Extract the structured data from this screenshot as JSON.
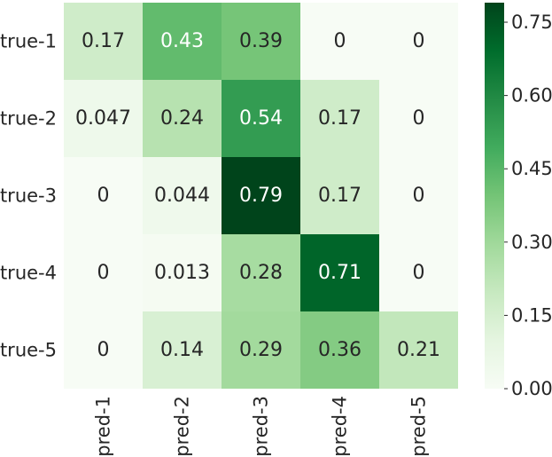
{
  "chart_data": {
    "type": "heatmap",
    "title": "",
    "xlabel": "",
    "ylabel": "",
    "rows": [
      "true-1",
      "true-2",
      "true-3",
      "true-4",
      "true-5"
    ],
    "columns": [
      "pred-1",
      "pred-2",
      "pred-3",
      "pred-4",
      "pred-5"
    ],
    "values": [
      [
        0.17,
        0.43,
        0.39,
        0,
        0
      ],
      [
        0.047,
        0.24,
        0.54,
        0.17,
        0
      ],
      [
        0,
        0.044,
        0.79,
        0.17,
        0
      ],
      [
        0,
        0.013,
        0.28,
        0.71,
        0
      ],
      [
        0,
        0.14,
        0.29,
        0.36,
        0.21
      ]
    ],
    "cell_labels": [
      [
        "0.17",
        "0.43",
        "0.39",
        "0",
        "0"
      ],
      [
        "0.047",
        "0.24",
        "0.54",
        "0.17",
        "0"
      ],
      [
        "0",
        "0.044",
        "0.79",
        "0.17",
        "0"
      ],
      [
        "0",
        "0.013",
        "0.28",
        "0.71",
        "0"
      ],
      [
        "0",
        "0.14",
        "0.29",
        "0.36",
        "0.21"
      ]
    ],
    "colormap": "Greens",
    "colorbar": {
      "range": [
        0,
        0.79
      ],
      "ticks": [
        0,
        0.15,
        0.3,
        0.45,
        0.6,
        0.75
      ],
      "tick_labels": [
        "0.00",
        "0.15",
        "0.30",
        "0.45",
        "0.60",
        "0.75"
      ]
    },
    "colors": {
      "low": "#f7fcf5",
      "high": "#00441b",
      "text_dark": "#262626",
      "text_light": "#ffffff"
    }
  }
}
